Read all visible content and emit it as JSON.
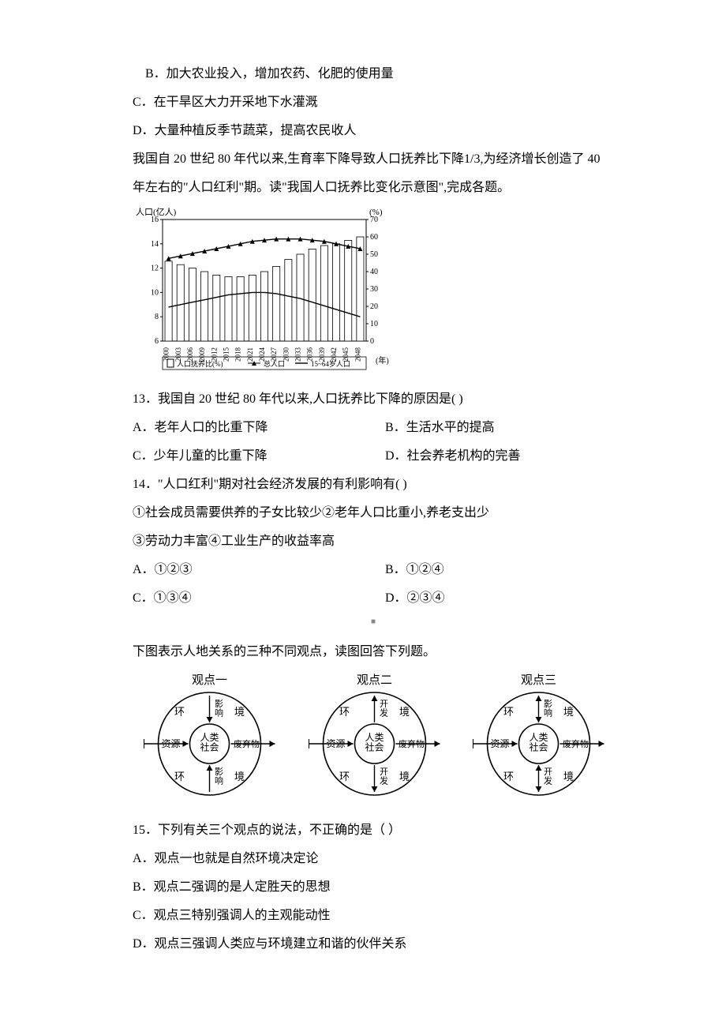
{
  "q_before": {
    "B": " B．加大农业投入，增加农药、化肥的使用量",
    "C": "C．在干旱区大力开采地下水灌溉",
    "D": "D．大量种植反季节蔬菜，提高农民收人"
  },
  "passage1_l1": "我国自 20 世纪 80 年代以来,生育率下降导致人口抚养比下降1/3,为经济增长创造了 40",
  "passage1_l2": "年左右的\"人口红利\"期。读\"我国人口抚养比变化示意图\",完成各题。",
  "chart": {
    "y1_label": "人口(亿人)",
    "y2_label": "(%)",
    "y1_ticks": [
      6,
      8,
      10,
      12,
      14,
      16
    ],
    "y2_ticks": [
      0,
      10,
      20,
      30,
      40,
      50,
      60,
      70
    ],
    "x_ticks": [
      "2000",
      "2003",
      "2006",
      "2009",
      "2012",
      "2015",
      "2018",
      "2021",
      "2024",
      "2027",
      "2030",
      "2033",
      "2036",
      "2039",
      "2042",
      "2045",
      "2048"
    ],
    "x_unit": "(年)",
    "legend": [
      "人口抚养比(%)",
      "总人口",
      "15~64岁人口"
    ],
    "bars": [
      46,
      44,
      42,
      40,
      38,
      37,
      37,
      38,
      40,
      43,
      47,
      50,
      53,
      55,
      56,
      58,
      60
    ],
    "total_pop": [
      12.8,
      13.0,
      13.2,
      13.4,
      13.6,
      13.8,
      14.0,
      14.2,
      14.3,
      14.4,
      14.4,
      14.4,
      14.3,
      14.2,
      14.0,
      13.8,
      13.6
    ],
    "working_pop": [
      8.8,
      9.0,
      9.2,
      9.4,
      9.6,
      9.8,
      9.9,
      10.0,
      10.0,
      9.9,
      9.7,
      9.5,
      9.2,
      8.9,
      8.6,
      8.3,
      8.0
    ],
    "colors": {
      "axis": "#000000",
      "bar_stroke": "#000000",
      "bar_fill": "#ffffff",
      "line1": "#000000",
      "line2": "#000000",
      "bg": "#ffffff",
      "text": "#000000"
    },
    "font_size": 10
  },
  "q13": {
    "stem": "13．我国自 20 世纪 80 年代以来,人口抚养比下降的原因是(  )",
    "A": "A．老年人口的比重下降",
    "B": "B．生活水平的提高",
    "C": "C．少年儿童的比重下降",
    "D": "D．社会养老机构的完善"
  },
  "q14": {
    "stem": "14．\"人口红利\"期对社会经济发展的有利影响有(  )",
    "l1": "①社会成员需要供养的子女比较少②老年人口比重小,养老支出少",
    "l2": "③劳动力丰富④工业生产的收益率高",
    "A": "A．①②③",
    "B": "B．①②④",
    "C": "C．①③④",
    "D": "D．②③④"
  },
  "passage2": "下图表示人地关系的三种不同观点，读图回答下列题。",
  "diagrams": {
    "titles": [
      "观点一",
      "观点二",
      "观点三"
    ],
    "center": "人类\n社会",
    "huan": "环",
    "jing": "境",
    "left_arrow": "资源",
    "right_arrow": "废弃物",
    "v1_top": "影\n响",
    "v1_bot": "影\n响",
    "v23_top": "开\n发",
    "v23_bot": "开\n发",
    "v3_top": "影\n响",
    "colors": {
      "stroke": "#000000",
      "fill": "#ffffff",
      "text": "#000000"
    }
  },
  "q15": {
    "stem": "15．下列有关三个观点的说法，不正确的是（  ）",
    "A": "A．观点一也就是自然环境决定论",
    "B": "B．观点二强调的是人定胜天的思想",
    "C": "C．观点三特别强调人的主观能动性",
    "D": "D．观点三强调人类应与环境建立和谐的伙伴关系"
  },
  "center_dot": "■"
}
